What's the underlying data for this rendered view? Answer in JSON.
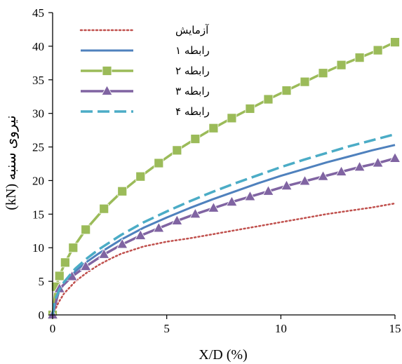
{
  "chart_data": {
    "type": "line",
    "xlabel": "X/D (%)",
    "ylabel": "نیروی سنبه (kN)",
    "xlim": [
      0,
      15
    ],
    "ylim": [
      0,
      45
    ],
    "xticks": [
      0,
      5,
      10,
      15
    ],
    "yticks": [
      0,
      5,
      10,
      15,
      20,
      25,
      30,
      35,
      40,
      45
    ],
    "grid": false,
    "legend_position": "top-left",
    "series": [
      {
        "name": "آزمایش",
        "style": "dotted",
        "color": "#c0504d",
        "marker": "none",
        "x": [
          0,
          0.25,
          0.5,
          1,
          1.5,
          2,
          2.5,
          3,
          4,
          5,
          6,
          7,
          8,
          9,
          10,
          11,
          12,
          13,
          14,
          15
        ],
        "y": [
          0,
          1.8,
          3.2,
          5.0,
          6.3,
          7.4,
          8.3,
          9.1,
          10.2,
          10.9,
          11.4,
          12.0,
          12.6,
          13.2,
          13.8,
          14.4,
          15.0,
          15.5,
          16.0,
          16.6
        ]
      },
      {
        "name": "رابطه ۱",
        "style": "solid",
        "color": "#4f81bd",
        "marker": "none",
        "x": [
          0,
          0.1,
          0.3,
          0.5,
          1,
          1.5,
          2,
          3,
          4,
          5,
          6,
          7,
          8,
          9,
          10,
          11,
          12,
          13,
          14,
          15
        ],
        "y": [
          0,
          2.1,
          3.6,
          4.6,
          6.5,
          7.9,
          9.1,
          11.2,
          13.0,
          14.5,
          15.9,
          17.2,
          18.4,
          19.6,
          20.7,
          21.7,
          22.7,
          23.6,
          24.5,
          25.3
        ]
      },
      {
        "name": "رابطه ۲",
        "style": "solid",
        "color": "#9bbb59",
        "marker": "square",
        "x": [
          0,
          0.15,
          0.3,
          0.55,
          0.9,
          1.45,
          2.25,
          3.05,
          3.85,
          4.65,
          5.45,
          6.25,
          7.05,
          7.85,
          8.65,
          9.45,
          10.25,
          11.05,
          11.85,
          12.65,
          13.45,
          14.25,
          15.0
        ],
        "y": [
          0,
          4.2,
          5.8,
          7.8,
          10.0,
          12.7,
          15.8,
          18.4,
          20.6,
          22.6,
          24.5,
          26.2,
          27.8,
          29.3,
          30.7,
          32.1,
          33.4,
          34.7,
          36.0,
          37.2,
          38.3,
          39.4,
          40.6
        ]
      },
      {
        "name": "رابطه ۳",
        "style": "solid",
        "color": "#8064a2",
        "marker": "triangle",
        "x": [
          0,
          0.3,
          0.85,
          1.45,
          2.25,
          3.05,
          3.85,
          4.65,
          5.45,
          6.25,
          7.05,
          7.85,
          8.65,
          9.45,
          10.25,
          11.05,
          11.85,
          12.65,
          13.45,
          14.25,
          15.0
        ],
        "y": [
          0,
          3.9,
          5.7,
          7.2,
          9.0,
          10.5,
          11.8,
          12.9,
          14.0,
          15.0,
          15.9,
          16.8,
          17.6,
          18.4,
          19.2,
          19.9,
          20.6,
          21.3,
          22.0,
          22.6,
          23.3
        ]
      },
      {
        "name": "رابطه ۴",
        "style": "dashed",
        "color": "#4bacc6",
        "marker": "none",
        "x": [
          0,
          0.1,
          0.3,
          0.5,
          1,
          1.5,
          2,
          3,
          4,
          5,
          6,
          7,
          8,
          9,
          10,
          11,
          12,
          13,
          14,
          15
        ],
        "y": [
          0,
          2.2,
          3.8,
          4.9,
          6.9,
          8.4,
          9.7,
          11.9,
          13.8,
          15.4,
          16.9,
          18.3,
          19.6,
          20.8,
          22.0,
          23.1,
          24.1,
          25.1,
          26.0,
          26.9
        ]
      }
    ]
  }
}
